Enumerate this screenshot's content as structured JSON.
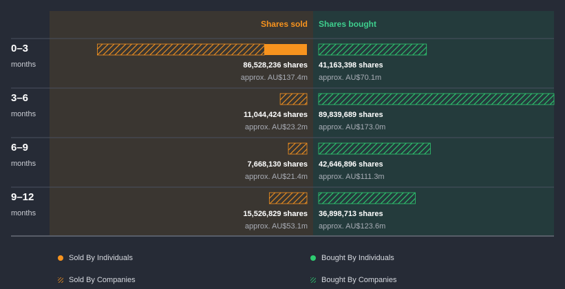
{
  "chart_data": {
    "type": "bar",
    "orientation": "diverging-horizontal",
    "headers": {
      "sold": "Shares sold",
      "bought": "Shares bought"
    },
    "rows": [
      {
        "period": "0–3",
        "unit": "months",
        "sold": {
          "companies": 69000000,
          "individuals": 17528236,
          "total_label": "86,528,236 shares",
          "value_label": "approx. AU$137.4m"
        },
        "bought": {
          "companies": 41163398,
          "individuals": 0,
          "total_label": "41,163,398 shares",
          "value_label": "approx. AU$70.1m"
        }
      },
      {
        "period": "3–6",
        "unit": "months",
        "sold": {
          "companies": 11044424,
          "individuals": 0,
          "total_label": "11,044,424 shares",
          "value_label": "approx. AU$23.2m"
        },
        "bought": {
          "companies": 89839689,
          "individuals": 0,
          "total_label": "89,839,689 shares",
          "value_label": "approx. AU$173.0m"
        }
      },
      {
        "period": "6–9",
        "unit": "months",
        "sold": {
          "companies": 7668130,
          "individuals": 0,
          "total_label": "7,668,130 shares",
          "value_label": "approx. AU$21.4m"
        },
        "bought": {
          "companies": 42646896,
          "individuals": 0,
          "total_label": "42,646,896 shares",
          "value_label": "approx. AU$111.3m"
        }
      },
      {
        "period": "9–12",
        "unit": "months",
        "sold": {
          "companies": 15526829,
          "individuals": 0,
          "total_label": "15,526,829 shares",
          "value_label": "approx. AU$53.1m"
        },
        "bought": {
          "companies": 36898713,
          "individuals": 0,
          "total_label": "36,898,713 shares",
          "value_label": "approx. AU$123.6m"
        }
      }
    ],
    "legend": [
      {
        "key": "sold-individuals",
        "label": "Sold By Individuals",
        "color": "#f7931e",
        "style": "dot"
      },
      {
        "key": "bought-individuals",
        "label": "Bought By Individuals",
        "color": "#2ecc71",
        "style": "dot"
      },
      {
        "key": "sold-companies",
        "label": "Sold By Companies",
        "color": "#f7931e",
        "style": "hatch"
      },
      {
        "key": "bought-companies",
        "label": "Bought By Companies",
        "color": "#2ecc71",
        "style": "hatch"
      }
    ],
    "colors": {
      "sold": "#f7931e",
      "bought": "#2ecc71",
      "sold_header": "#f7931e",
      "bought_header": "#3ecf8e",
      "sold_panel": "#3a3631",
      "bought_panel": "#243b3c",
      "background": "#262b36"
    }
  }
}
